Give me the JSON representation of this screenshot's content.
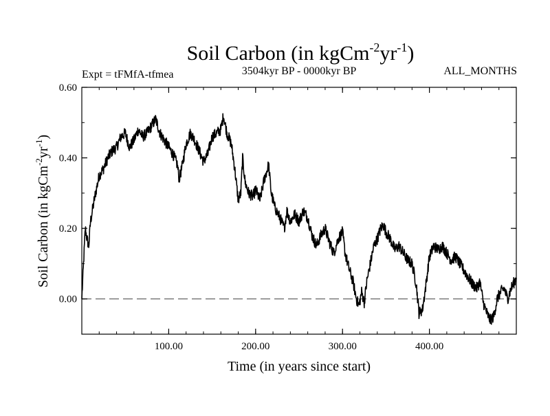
{
  "chart_data": {
    "type": "line",
    "title_main": "Soil Carbon (in kgCm",
    "title_exp1": "-2",
    "title_mid": "yr",
    "title_exp2": "-1",
    "title_end": ")",
    "subtitle_left": "Expt = tFMfA-tfmea",
    "subtitle_center": "3504kyr BP - 0000kyr BP",
    "subtitle_right": "ALL_MONTHS",
    "xlabel": "Time (in years since start)",
    "ylabel_main": "Soil Carbon (in kgCm",
    "ylabel_exp1": "-2",
    "ylabel_mid": "yr",
    "ylabel_exp2": "-1",
    "ylabel_end": ")",
    "xlim": [
      0,
      500
    ],
    "ylim": [
      -0.1,
      0.6
    ],
    "xticks": [
      100,
      200,
      300,
      400
    ],
    "xtick_labels": [
      "100.00",
      "200.00",
      "300.00",
      "400.00"
    ],
    "yticks": [
      0.6,
      0.4,
      0.2,
      0.0
    ],
    "ytick_labels": [
      "0.60",
      "0.40",
      "0.20",
      "0.00"
    ],
    "zero_line": 0.0,
    "series": [
      {
        "name": "Soil Carbon",
        "color": "#000000",
        "keypoints": [
          [
            0,
            0.0
          ],
          [
            2,
            0.1
          ],
          [
            4,
            0.2
          ],
          [
            6,
            0.17
          ],
          [
            8,
            0.15
          ],
          [
            10,
            0.22
          ],
          [
            15,
            0.29
          ],
          [
            20,
            0.35
          ],
          [
            25,
            0.37
          ],
          [
            30,
            0.4
          ],
          [
            35,
            0.42
          ],
          [
            40,
            0.43
          ],
          [
            45,
            0.46
          ],
          [
            50,
            0.47
          ],
          [
            55,
            0.43
          ],
          [
            60,
            0.45
          ],
          [
            65,
            0.48
          ],
          [
            70,
            0.46
          ],
          [
            75,
            0.47
          ],
          [
            80,
            0.49
          ],
          [
            85,
            0.51
          ],
          [
            90,
            0.47
          ],
          [
            95,
            0.45
          ],
          [
            100,
            0.43
          ],
          [
            105,
            0.41
          ],
          [
            110,
            0.38
          ],
          [
            112,
            0.34
          ],
          [
            115,
            0.37
          ],
          [
            120,
            0.44
          ],
          [
            125,
            0.47
          ],
          [
            130,
            0.45
          ],
          [
            135,
            0.42
          ],
          [
            140,
            0.39
          ],
          [
            145,
            0.41
          ],
          [
            150,
            0.46
          ],
          [
            155,
            0.47
          ],
          [
            160,
            0.48
          ],
          [
            163,
            0.52
          ],
          [
            167,
            0.47
          ],
          [
            172,
            0.44
          ],
          [
            176,
            0.37
          ],
          [
            180,
            0.28
          ],
          [
            183,
            0.3
          ],
          [
            185,
            0.4
          ],
          [
            188,
            0.33
          ],
          [
            192,
            0.3
          ],
          [
            197,
            0.29
          ],
          [
            200,
            0.31
          ],
          [
            205,
            0.28
          ],
          [
            210,
            0.34
          ],
          [
            215,
            0.38
          ],
          [
            218,
            0.3
          ],
          [
            222,
            0.26
          ],
          [
            228,
            0.23
          ],
          [
            233,
            0.2
          ],
          [
            236,
            0.25
          ],
          [
            240,
            0.22
          ],
          [
            245,
            0.24
          ],
          [
            250,
            0.22
          ],
          [
            255,
            0.25
          ],
          [
            260,
            0.23
          ],
          [
            265,
            0.18
          ],
          [
            270,
            0.15
          ],
          [
            275,
            0.18
          ],
          [
            280,
            0.2
          ],
          [
            285,
            0.16
          ],
          [
            290,
            0.13
          ],
          [
            295,
            0.17
          ],
          [
            300,
            0.19
          ],
          [
            303,
            0.13
          ],
          [
            307,
            0.09
          ],
          [
            312,
            0.05
          ],
          [
            316,
            0.0
          ],
          [
            319,
            -0.02
          ],
          [
            322,
            0.02
          ],
          [
            325,
            -0.01
          ],
          [
            328,
            0.05
          ],
          [
            332,
            0.1
          ],
          [
            336,
            0.15
          ],
          [
            340,
            0.17
          ],
          [
            344,
            0.2
          ],
          [
            347,
            0.21
          ],
          [
            350,
            0.19
          ],
          [
            355,
            0.17
          ],
          [
            360,
            0.14
          ],
          [
            365,
            0.15
          ],
          [
            370,
            0.13
          ],
          [
            375,
            0.11
          ],
          [
            380,
            0.1
          ],
          [
            385,
            0.04
          ],
          [
            388,
            -0.04
          ],
          [
            392,
            -0.03
          ],
          [
            396,
            0.04
          ],
          [
            400,
            0.12
          ],
          [
            405,
            0.15
          ],
          [
            410,
            0.14
          ],
          [
            415,
            0.15
          ],
          [
            420,
            0.13
          ],
          [
            425,
            0.11
          ],
          [
            430,
            0.12
          ],
          [
            435,
            0.1
          ],
          [
            440,
            0.08
          ],
          [
            445,
            0.06
          ],
          [
            450,
            0.04
          ],
          [
            455,
            0.03
          ],
          [
            458,
            0.05
          ],
          [
            462,
            -0.01
          ],
          [
            466,
            -0.04
          ],
          [
            470,
            -0.06
          ],
          [
            474,
            -0.05
          ],
          [
            478,
            0.0
          ],
          [
            482,
            0.02
          ],
          [
            486,
            0.03
          ],
          [
            490,
            0.0
          ],
          [
            494,
            0.03
          ],
          [
            498,
            0.05
          ],
          [
            500,
            0.06
          ]
        ]
      }
    ]
  }
}
